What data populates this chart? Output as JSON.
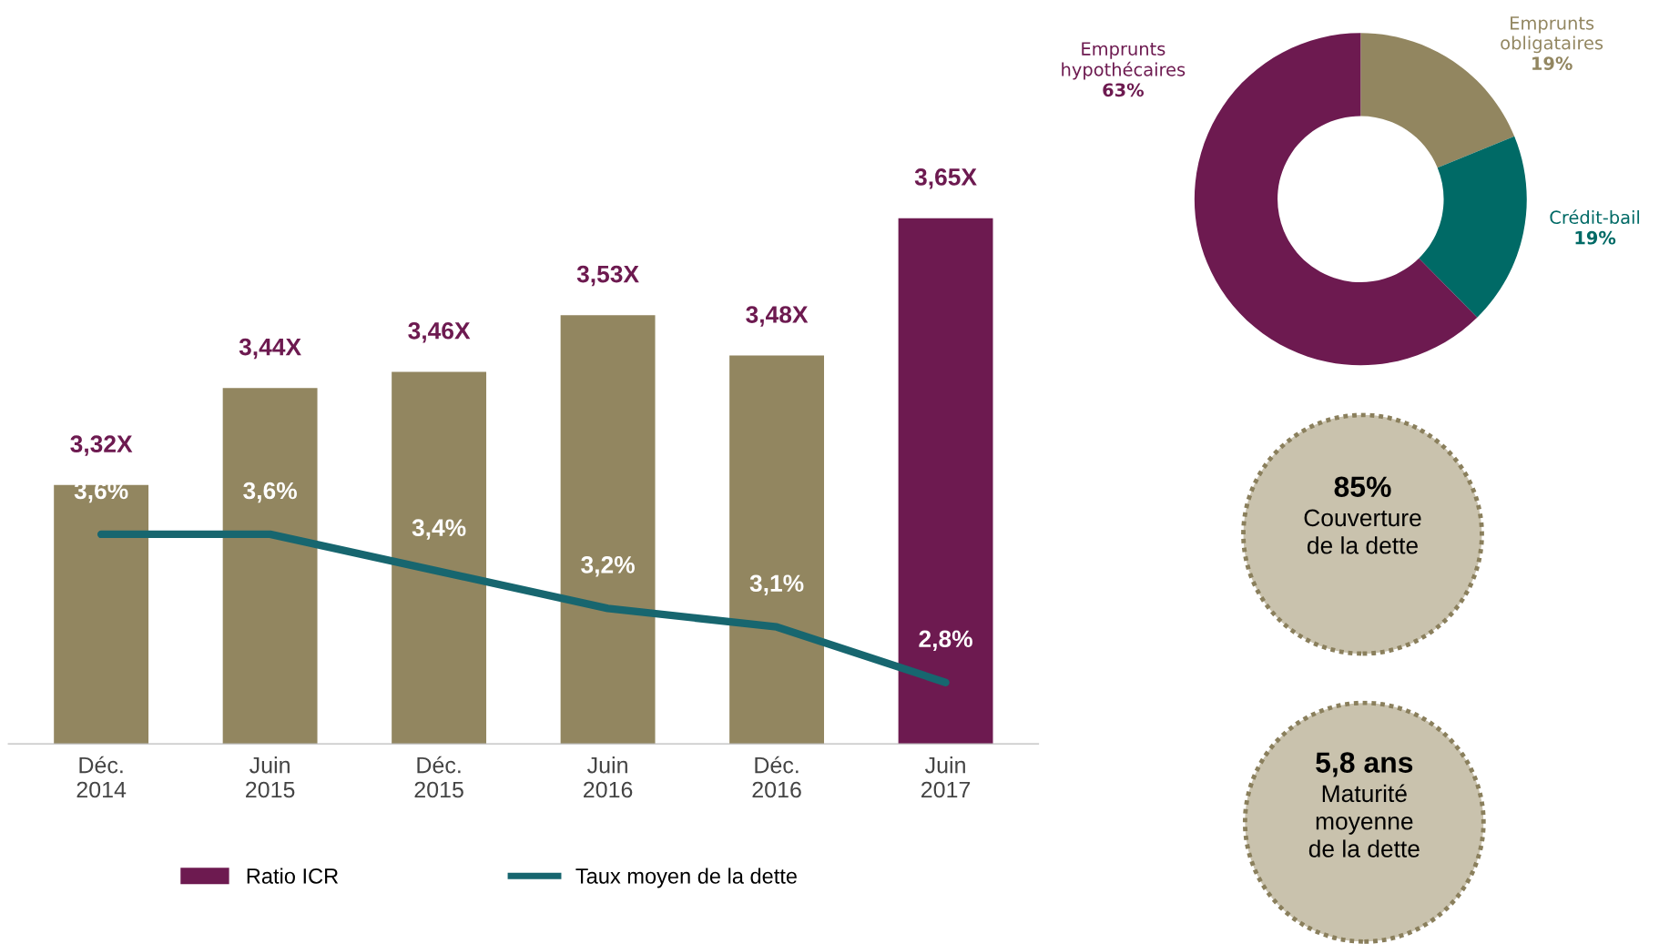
{
  "chart_data": [
    {
      "type": "bar",
      "categories": [
        "Déc.\n2014",
        "Juin\n2015",
        "Déc.\n2015",
        "Juin\n2016",
        "Déc.\n2016",
        "Juin\n2017"
      ],
      "ylim": [
        3.0,
        3.65
      ],
      "tick_labels": "x",
      "legend": "bottom",
      "grid": false,
      "series": [
        {
          "name": "Ratio ICR",
          "type": "bar",
          "color": "#6d1a50",
          "colors": [
            "#928660",
            "#928660",
            "#928660",
            "#928660",
            "#928660",
            "#6d1a50"
          ],
          "values": [
            3.32,
            3.44,
            3.46,
            3.53,
            3.48,
            3.65
          ],
          "value_labels": [
            "3,32X",
            "3,44X",
            "3,46X",
            "3,53X",
            "3,48X",
            "3,65X"
          ]
        },
        {
          "name": "Taux moyen de la dette",
          "type": "line",
          "axis": "y2",
          "color": "#17666f",
          "line_style": "solid",
          "marker": "none",
          "values": [
            3.6,
            3.6,
            3.4,
            3.2,
            3.1,
            2.8
          ],
          "value_labels": [
            "3,6%",
            "3,6%",
            "3,4%",
            "3,2%",
            "3,1%",
            "2,8%"
          ]
        }
      ]
    },
    {
      "type": "donut",
      "categories": [
        "Emprunts\nobligataires",
        "Crédit-bail",
        "Emprunts\nhypothécaires"
      ],
      "values": [
        19,
        19,
        63
      ],
      "colors": [
        "#928660",
        "#006a66",
        "#6d1a50"
      ],
      "value_labels": [
        "19%",
        "19%",
        "63%"
      ]
    },
    {
      "type": "other",
      "title": "85%",
      "subtitle": "Couverture\nde la dette"
    },
    {
      "type": "other",
      "title": "5,8 ans",
      "subtitle": "Maturité\nmoyenne\nde la dette"
    }
  ]
}
